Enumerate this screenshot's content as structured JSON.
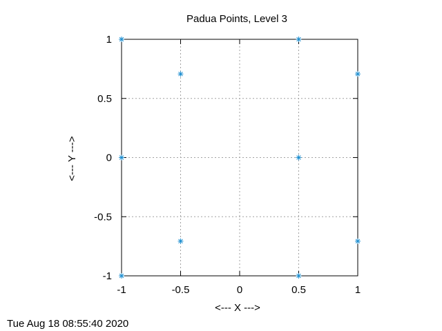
{
  "chart_data": {
    "type": "scatter",
    "title": "Padua Points, Level  3",
    "xlabel": "<--- X --->",
    "ylabel": "<--- Y --->",
    "xlim": [
      -1,
      1
    ],
    "ylim": [
      -1,
      1
    ],
    "grid": true,
    "x_ticks": [
      -1,
      -0.5,
      0,
      0.5,
      1
    ],
    "x_tick_labels": [
      "-1",
      "-0.5",
      "0",
      "0.5",
      "1"
    ],
    "y_ticks": [
      -1,
      -0.5,
      0,
      0.5,
      1
    ],
    "y_tick_labels": [
      "-1",
      "-0.5",
      "0",
      "0.5",
      "1"
    ],
    "marker": "asterisk",
    "marker_color": "#1f8fd0",
    "points": [
      {
        "x": -1,
        "y": -1
      },
      {
        "x": -1,
        "y": 0
      },
      {
        "x": -1,
        "y": 1
      },
      {
        "x": -0.5,
        "y": -0.707
      },
      {
        "x": -0.5,
        "y": 0.707
      },
      {
        "x": 0.5,
        "y": -1
      },
      {
        "x": 0.5,
        "y": 0
      },
      {
        "x": 0.5,
        "y": 1
      },
      {
        "x": 1,
        "y": -0.707
      },
      {
        "x": 1,
        "y": 0.707
      }
    ]
  },
  "footer": {
    "timestamp": "Tue Aug 18 08:55:40 2020"
  }
}
